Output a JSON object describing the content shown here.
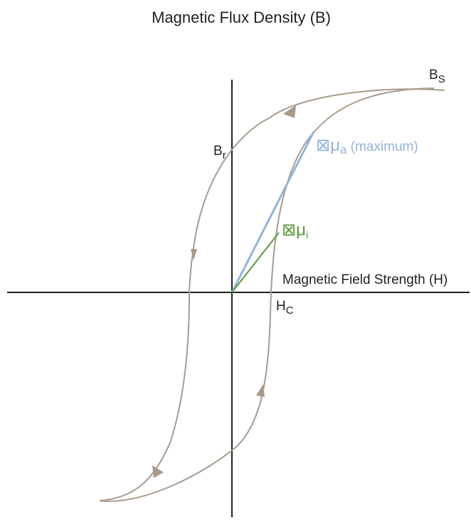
{
  "title": "Magnetic Flux Density (B)",
  "x_axis_label": "Magnetic Field Strength (H)",
  "labels": {
    "bs_main": "B",
    "bs_sub": "S",
    "br_main": "B",
    "br_sub": "r",
    "hc_main": "H",
    "hc_sub": "C",
    "mu_a_main": "⊠μ",
    "mu_a_sub": "a",
    "mu_a_note": " (maximum)",
    "mu_i_main": "⊠μ",
    "mu_i_sub": "i"
  },
  "colors": {
    "axis": "#231f20",
    "loop": "#a89b8c",
    "mu_a": "#92b4d9",
    "mu_i": "#5b9a3c",
    "text": "#231f20"
  }
}
